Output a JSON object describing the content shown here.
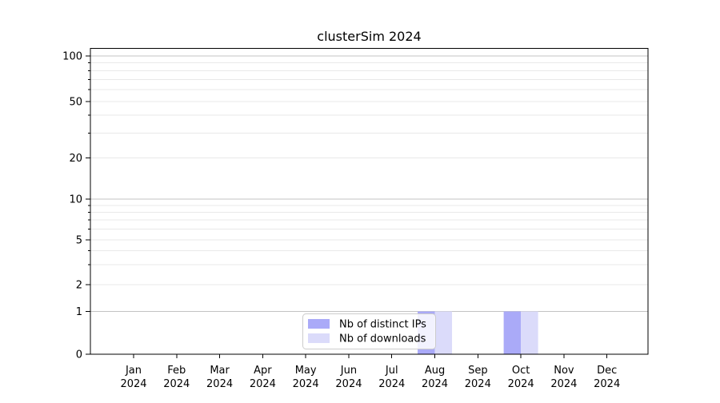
{
  "chart_data": {
    "type": "bar",
    "title": "clusterSim 2024",
    "categories": [
      "Jan",
      "Feb",
      "Mar",
      "Apr",
      "May",
      "Jun",
      "Jul",
      "Aug",
      "Sep",
      "Oct",
      "Nov",
      "Dec"
    ],
    "category_year_line": "2024",
    "series": [
      {
        "name": "Nb of distinct IPs",
        "color": "#aaaaf8",
        "values": [
          0,
          0,
          0,
          0,
          0,
          0,
          0,
          1,
          0,
          1,
          0,
          0
        ]
      },
      {
        "name": "Nb of downloads",
        "color": "#dbdbfa",
        "values": [
          0,
          0,
          0,
          0,
          0,
          0,
          0,
          1,
          0,
          1,
          0,
          0
        ]
      }
    ],
    "y_axis": {
      "scale": "log-like",
      "ylim": [
        0,
        100
      ],
      "major_tick_labels": [
        "0",
        "1",
        "2",
        "5",
        "10",
        "20",
        "50",
        "100"
      ],
      "major_ticks": [
        0,
        1,
        2,
        5,
        10,
        20,
        50,
        100
      ],
      "minor_gridline_values": [
        3,
        4,
        6,
        7,
        8,
        9,
        30,
        40,
        60,
        70,
        80,
        90
      ]
    },
    "x_axis": {
      "tick_count": 12
    },
    "legend": {
      "position": "inside-bottom-center",
      "items": [
        "Nb of distinct IPs",
        "Nb of downloads"
      ]
    },
    "colors": {
      "background": "#ffffff",
      "axis_frame": "#000000",
      "grid_power10": "#c3c3c3",
      "grid_minor": "#e9e9e9",
      "legend_border": "#cccccc",
      "legend_background": "#ffffff",
      "text": "#000000"
    },
    "grid": true
  }
}
